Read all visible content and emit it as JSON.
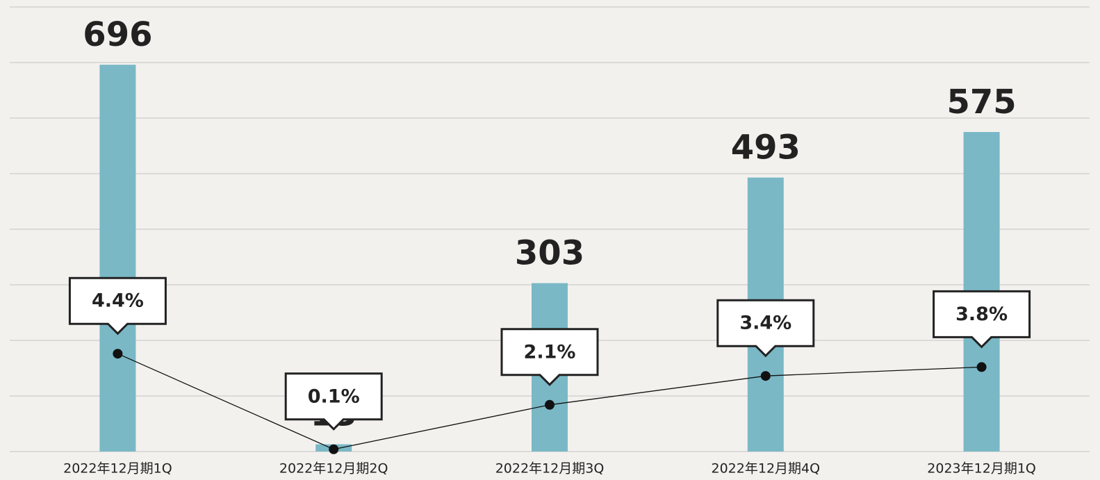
{
  "chart_data": {
    "type": "bar",
    "categories": [
      "2022年12月期1Q",
      "2022年12月期2Q",
      "2022年12月期3Q",
      "2022年12月期4Q",
      "2023年12月期1Q"
    ],
    "series": [
      {
        "type": "bar",
        "color": "#7ab8c6",
        "values": [
          696,
          13,
          303,
          493,
          575
        ]
      },
      {
        "type": "line",
        "axis": "y2",
        "color": "#111111",
        "values": [
          4.4,
          0.1,
          2.1,
          3.4,
          3.8
        ],
        "value_labels": [
          "4.4%",
          "0.1%",
          "2.1%",
          "3.4%",
          "3.8%"
        ]
      }
    ],
    "ylim": [
      0,
      800
    ],
    "yticks": [
      0,
      100,
      200,
      300,
      400,
      500,
      600,
      700,
      800
    ],
    "y2lim": [
      0,
      20
    ],
    "grid": true
  }
}
